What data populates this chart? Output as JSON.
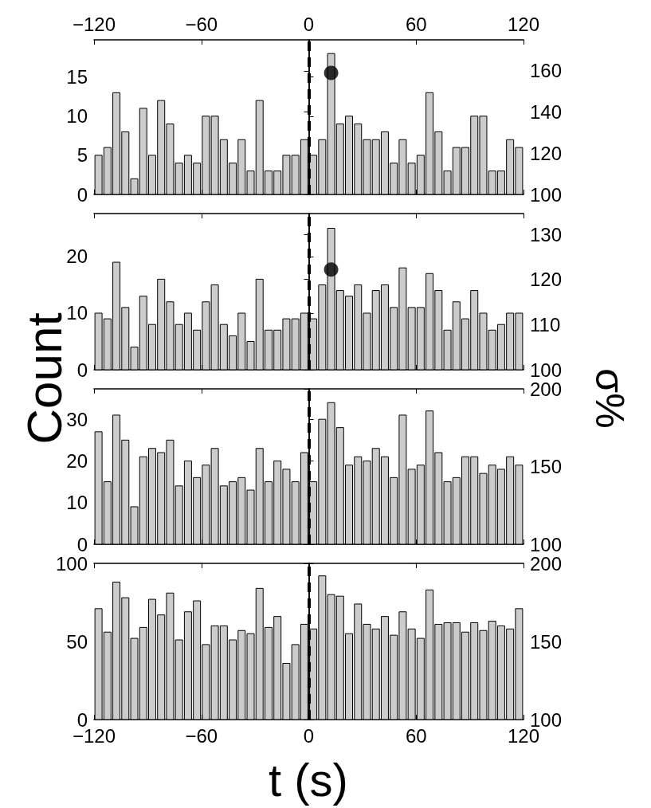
{
  "chart_data": [
    {
      "type": "histogram",
      "bins": [
        -120,
        -115,
        -110,
        -105,
        -100,
        -95,
        -90,
        -85,
        -80,
        -75,
        -70,
        -65,
        -60,
        -55,
        -50,
        -45,
        -40,
        -35,
        -30,
        -25,
        -20,
        -15,
        -10,
        -5,
        0,
        5,
        10,
        15,
        20,
        25,
        30,
        35,
        40,
        45,
        50,
        55,
        60,
        65,
        70,
        75,
        80,
        85,
        90,
        95,
        100,
        105,
        110,
        115,
        120
      ],
      "series": [
        {
          "color": "#cccccc",
          "values": [
            5,
            6,
            13,
            8,
            2,
            11,
            5,
            12,
            9,
            4,
            5,
            4,
            10,
            10,
            7,
            4,
            7,
            3,
            12,
            3,
            3,
            5,
            5,
            7,
            5,
            7,
            18,
            9,
            10,
            9,
            7,
            7,
            8,
            4,
            7,
            4,
            5,
            13,
            8,
            3,
            6,
            6,
            10,
            10,
            3,
            3,
            7,
            6
          ]
        },
        {
          "type": "scatter",
          "axis": "y2",
          "color": "#000000",
          "marker": "circle",
          "x": [
            12.5
          ],
          "values": [
            159
          ]
        }
      ],
      "xlim": [
        -120,
        120
      ],
      "xticks": [
        {
          "value": -120,
          "label": null
        },
        {
          "value": -60,
          "label": null
        },
        {
          "value": 0,
          "label": null
        },
        {
          "value": 60,
          "label": null
        },
        {
          "value": 120,
          "label": null
        }
      ],
      "x2lim": [
        -120,
        120
      ],
      "x2ticks": [
        {
          "value": -120,
          "label": "−120"
        },
        {
          "value": -60,
          "label": "−60"
        },
        0,
        60,
        120
      ],
      "ylim": [
        0,
        19.75
      ],
      "yticks": [
        0,
        5,
        10,
        15
      ],
      "y2lim": [
        100,
        175
      ],
      "y2ticks": [
        100,
        120,
        140,
        160
      ],
      "ref_lines": [
        {
          "axis": "x",
          "value": 0,
          "color": "#000000",
          "line_style": "dashed"
        }
      ],
      "tick_labels": "y"
    },
    {
      "type": "histogram",
      "bins": [
        -120,
        -115,
        -110,
        -105,
        -100,
        -95,
        -90,
        -85,
        -80,
        -75,
        -70,
        -65,
        -60,
        -55,
        -50,
        -45,
        -40,
        -35,
        -30,
        -25,
        -20,
        -15,
        -10,
        -5,
        0,
        5,
        10,
        15,
        20,
        25,
        30,
        35,
        40,
        45,
        50,
        55,
        60,
        65,
        70,
        75,
        80,
        85,
        90,
        95,
        100,
        105,
        110,
        115,
        120
      ],
      "ylabel": "Count",
      "y2label": "σ%",
      "series": [
        {
          "color": "#cccccc",
          "values": [
            10,
            9,
            19,
            11,
            4,
            13,
            8,
            16,
            12,
            8,
            10,
            7,
            12,
            15,
            8,
            6,
            10,
            5,
            16,
            7,
            7,
            9,
            9,
            10,
            9,
            15,
            25,
            14,
            13,
            15,
            10,
            14,
            15,
            11,
            18,
            11,
            11,
            17,
            14,
            7,
            12,
            9,
            14,
            10,
            7,
            8,
            10,
            10
          ]
        },
        {
          "type": "scatter",
          "axis": "y2",
          "color": "#000000",
          "marker": "circle",
          "x": [
            12.5
          ],
          "values": [
            122.2
          ]
        }
      ],
      "xlim": [
        -120,
        120
      ],
      "xticks": [
        {
          "value": -120,
          "label": null
        },
        {
          "value": -60,
          "label": null
        },
        {
          "value": 0,
          "label": null
        },
        {
          "value": 60,
          "label": null
        },
        {
          "value": 120,
          "label": null
        }
      ],
      "ylim": [
        0,
        27.6
      ],
      "yticks": [
        0,
        10,
        20
      ],
      "y2lim": [
        100,
        134.6
      ],
      "y2ticks": [
        100,
        110,
        120,
        130
      ],
      "ref_lines": [
        {
          "axis": "x",
          "value": 0,
          "color": "#000000",
          "line_style": "dashed"
        }
      ],
      "tick_labels": "y"
    },
    {
      "type": "histogram",
      "bins": [
        -120,
        -115,
        -110,
        -105,
        -100,
        -95,
        -90,
        -85,
        -80,
        -75,
        -70,
        -65,
        -60,
        -55,
        -50,
        -45,
        -40,
        -35,
        -30,
        -25,
        -20,
        -15,
        -10,
        -5,
        0,
        5,
        10,
        15,
        20,
        25,
        30,
        35,
        40,
        45,
        50,
        55,
        60,
        65,
        70,
        75,
        80,
        85,
        90,
        95,
        100,
        105,
        110,
        115,
        120
      ],
      "series": [
        {
          "color": "#cccccc",
          "values": [
            27,
            15,
            31,
            25,
            9,
            21,
            23,
            22,
            25,
            14,
            20,
            16,
            19,
            23,
            14,
            15,
            16,
            13,
            23,
            15,
            20,
            18,
            15,
            22,
            15,
            30,
            34,
            28,
            19,
            21,
            20,
            23,
            21,
            16,
            31,
            18,
            19,
            32,
            22,
            15,
            16,
            21,
            21,
            17,
            19,
            18,
            21,
            19
          ]
        }
      ],
      "xlim": [
        -120,
        120
      ],
      "xticks": [
        {
          "value": -120,
          "label": null
        },
        {
          "value": -60,
          "label": null
        },
        {
          "value": 0,
          "label": null
        },
        {
          "value": 60,
          "label": null
        },
        {
          "value": 120,
          "label": null
        }
      ],
      "ylim": [
        0,
        37.3
      ],
      "yticks": [
        0,
        10,
        20,
        30
      ],
      "y2lim": [
        100,
        200
      ],
      "y2ticks": [
        100,
        150,
        200
      ],
      "ref_lines": [
        {
          "axis": "x",
          "value": 0,
          "color": "#000000",
          "line_style": "dashed"
        }
      ],
      "tick_labels": "y"
    },
    {
      "type": "histogram",
      "bins": [
        -120,
        -115,
        -110,
        -105,
        -100,
        -95,
        -90,
        -85,
        -80,
        -75,
        -70,
        -65,
        -60,
        -55,
        -50,
        -45,
        -40,
        -35,
        -30,
        -25,
        -20,
        -15,
        -10,
        -5,
        0,
        5,
        10,
        15,
        20,
        25,
        30,
        35,
        40,
        45,
        50,
        55,
        60,
        65,
        70,
        75,
        80,
        85,
        90,
        95,
        100,
        105,
        110,
        115,
        120
      ],
      "xlabel": "t (s)",
      "series": [
        {
          "color": "#cccccc",
          "values": [
            71,
            56,
            88,
            78,
            52,
            59,
            77,
            67,
            81,
            51,
            69,
            76,
            48,
            60,
            60,
            51,
            57,
            55,
            84,
            59,
            66,
            36,
            48,
            61,
            58,
            92,
            80,
            79,
            55,
            74,
            61,
            58,
            66,
            54,
            69,
            58,
            52,
            83,
            61,
            62,
            62,
            56,
            62,
            57,
            63,
            60,
            58,
            71
          ]
        }
      ],
      "xlim": [
        -120,
        120
      ],
      "xticks": [
        {
          "value": -120,
          "label": "−120"
        },
        {
          "value": -60,
          "label": "−60"
        },
        0,
        60,
        120
      ],
      "ylim": [
        0,
        100
      ],
      "yticks": [
        0,
        50,
        100
      ],
      "y2lim": [
        100,
        200
      ],
      "y2ticks": [
        100,
        150,
        200
      ],
      "ref_lines": [
        {
          "axis": "x",
          "value": 0,
          "color": "#000000",
          "line_style": "dashed"
        }
      ]
    }
  ]
}
